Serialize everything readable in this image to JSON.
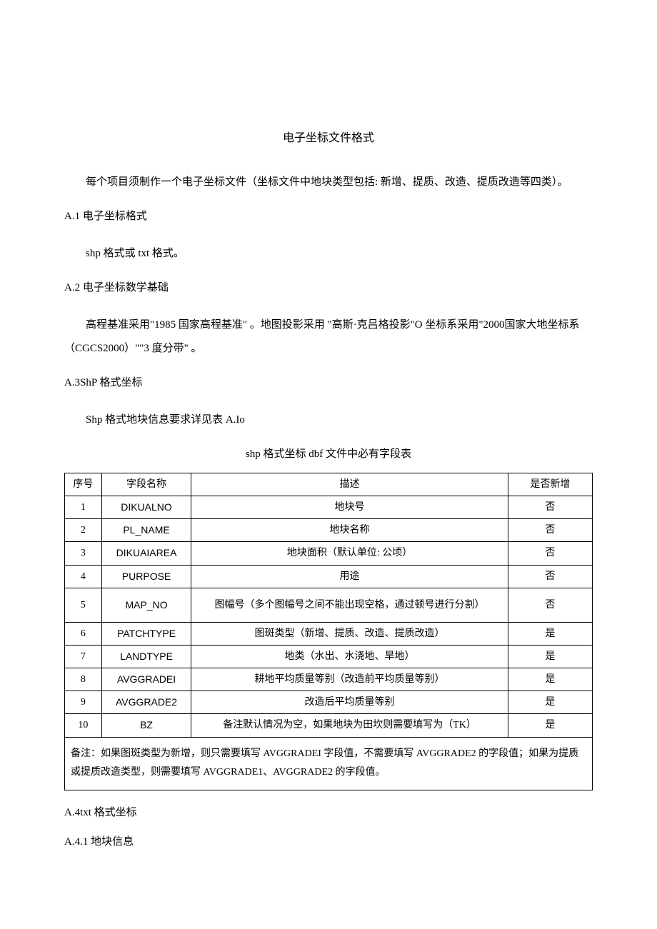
{
  "title": "电子坐标文件格式",
  "intro": "每个项目须制作一个电子坐标文件（坐标文件中地块类型包括: 新增、提质、改造、提质改造等四类）。",
  "sections": {
    "a1": {
      "heading": "A.1 电子坐标格式",
      "body": "shp 格式或 txt 格式。"
    },
    "a2": {
      "heading": "A.2 电子坐标数学基础",
      "body": "高程基准采用\"1985 国家高程基准\" 。地图投影采用 \"高斯·克吕格投影\"O 坐标系采用\"2000国家大地坐标系（CGCS2000）\"\"3 度分带\" 。"
    },
    "a3": {
      "heading": "A.3ShP 格式坐标",
      "body": "Shp 格式地块信息要求详见表 A.Io"
    },
    "a4": {
      "heading": "A.4txt 格式坐标",
      "sub": "A.4.1 地块信息"
    }
  },
  "table": {
    "caption": "shp 格式坐标 dbf 文件中必有字段表",
    "headers": {
      "seq": "序号",
      "field": "字段名称",
      "desc": "描述",
      "isnew": "是否新增"
    },
    "rows": [
      {
        "seq": "1",
        "field": "DIKUALNO",
        "desc": "地块号",
        "isnew": "否"
      },
      {
        "seq": "2",
        "field": "PL_NAME",
        "desc": "地块名称",
        "isnew": "否"
      },
      {
        "seq": "3",
        "field": "DIKUAIAREA",
        "desc": "地块面积（默认单位: 公顷）",
        "isnew": "否"
      },
      {
        "seq": "4",
        "field": "PURPOSE",
        "desc": "用途",
        "isnew": "否"
      },
      {
        "seq": "5",
        "field": "MAP_NO",
        "desc": "图幅号（多个图幅号之间不能出现空格，通过顿号进行分割）",
        "isnew": "否"
      },
      {
        "seq": "6",
        "field": "PATCHTYPE",
        "desc": "图斑类型（新增、提质、改造、提质改造）",
        "isnew": "是"
      },
      {
        "seq": "7",
        "field": "LANDTYPE",
        "desc": "地类（水出、水浇地、旱地）",
        "isnew": "是"
      },
      {
        "seq": "8",
        "field": "AVGGRADEI",
        "desc": "耕地平均质量等别（改造前平均质量等别）",
        "isnew": "是"
      },
      {
        "seq": "9",
        "field": "AVGGRADE2",
        "desc": "改造后平均质量等别",
        "isnew": "是"
      },
      {
        "seq": "10",
        "field": "BZ",
        "desc": "备注默认情况为空，如果地块为田坎则需要填写为（TK）",
        "isnew": "是"
      }
    ],
    "note": "备注：如果图斑类型为新增，则只需要填写 AVGGRADEI 字段值，不需要填写 AVGGRADE2 的字段值；如果为提质或提质改造类型，则需要填写 AVGGRADE1、AVGGRADE2 的字段值。"
  }
}
